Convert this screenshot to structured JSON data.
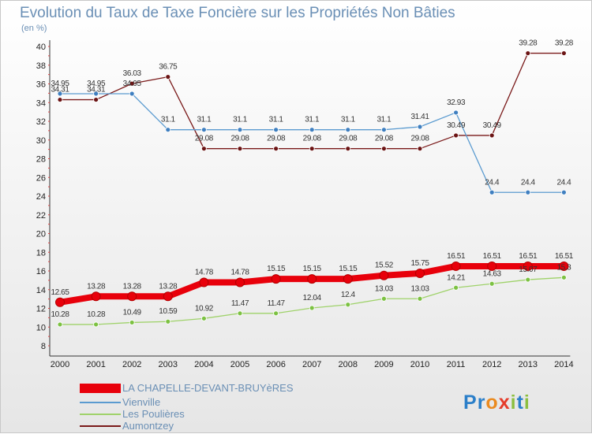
{
  "title": "Evolution du Taux de Taxe Foncière sur les Propriétés Non Bâties",
  "unit_label": "(en %)",
  "logo": {
    "text": "Proxiti",
    "letters": [
      "P",
      "r",
      "o",
      "x",
      "i",
      "t",
      "i"
    ],
    "colors": [
      "#2b7fc9",
      "#2b7fc9",
      "#ea8a1f",
      "#e53b2a",
      "#8cbf3f",
      "#2b7fc9",
      "#8cbf3f"
    ]
  },
  "chart_data": {
    "type": "line",
    "title": "Evolution du Taux de Taxe Foncière sur les Propriétés Non Bâties",
    "ylabel": "(en %)",
    "xlabel": "",
    "x": [
      "2000",
      "2001",
      "2002",
      "2003",
      "2004",
      "2005",
      "2006",
      "2007",
      "2008",
      "2009",
      "2010",
      "2011",
      "2012",
      "2013",
      "2014"
    ],
    "ylim": [
      8,
      40
    ],
    "yticks": [
      8,
      10,
      12,
      14,
      16,
      18,
      20,
      22,
      24,
      26,
      28,
      30,
      32,
      34,
      36,
      38,
      40
    ],
    "grid": false,
    "legend": "bottom-left",
    "series": [
      {
        "name": "LA CHAPELLE-DEVANT-BRUYèRES",
        "color": "#e8000b",
        "marker": "#e8000b",
        "values": [
          12.65,
          13.28,
          13.28,
          13.28,
          14.78,
          14.78,
          15.15,
          15.15,
          15.15,
          15.52,
          15.75,
          16.51,
          16.51,
          16.51,
          16.51
        ],
        "labels": [
          "12.65",
          "13.28",
          "13.28",
          "13.28",
          "14.78",
          "14.78",
          "15.15",
          "15.15",
          "15.15",
          "15.52",
          "15.75",
          "16.51",
          "16.51",
          "16.51",
          "16.51"
        ]
      },
      {
        "name": "Vienville",
        "color": "#5b9bd0",
        "marker": "#3f7fc0",
        "values": [
          34.95,
          34.95,
          34.95,
          31.1,
          31.1,
          31.1,
          31.1,
          31.1,
          31.1,
          31.1,
          31.41,
          32.93,
          24.4,
          24.4,
          24.4
        ],
        "labels": [
          "34.95",
          "34.95",
          "34.95",
          "31.1",
          "31.1",
          "31.1",
          "31.1",
          "31.1",
          "31.1",
          "31.1",
          "31.41",
          "32.93",
          "24.4",
          "24.4",
          "24.4"
        ]
      },
      {
        "name": "Les Poulières",
        "color": "#9fd26a",
        "marker": "#7cc142",
        "values": [
          10.28,
          10.28,
          10.49,
          10.59,
          10.92,
          11.47,
          11.47,
          12.04,
          12.4,
          13.03,
          13.03,
          14.21,
          14.63,
          15.07,
          15.3
        ],
        "labels": [
          "10.28",
          "10.28",
          "10.49",
          "10.59",
          "10.92",
          "11.47",
          "11.47",
          "12.04",
          "12.4",
          "13.03",
          "13.03",
          "14.21",
          "14.63",
          "15.07",
          "15.3"
        ]
      },
      {
        "name": "Aumontzey",
        "color": "#7a1a1a",
        "marker": "#6b1414",
        "values": [
          34.31,
          34.31,
          36.03,
          36.75,
          29.08,
          29.08,
          29.08,
          29.08,
          29.08,
          29.08,
          29.08,
          30.49,
          30.49,
          39.28,
          39.28
        ],
        "labels": [
          "34.31",
          "34.31",
          "36.03",
          "36.75",
          "29.08",
          "29.08",
          "29.08",
          "29.08",
          "29.08",
          "29.08",
          "29.08",
          "30.49",
          "30.49",
          "39.28",
          "39.28"
        ]
      }
    ]
  }
}
